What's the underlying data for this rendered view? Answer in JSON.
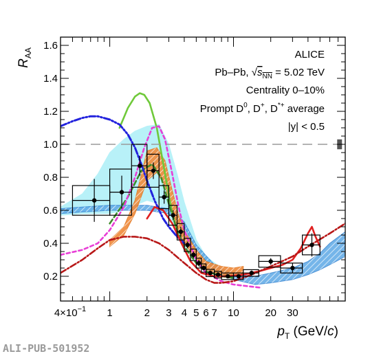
{
  "chart_data": {
    "type": "scatter",
    "title": "ALICE",
    "annotations": {
      "system_prefix": "Pb–Pb, ",
      "energy_sym": "s",
      "energy_sub": "NN",
      "energy_val": " = 5.02 TeV",
      "centrality": "Centrality 0–10%",
      "species_a": "Prompt D",
      "species_sup0": "0",
      "species_b": ", D",
      "species_supplus": "+",
      "species_c": ", D",
      "species_supstar": "*+",
      "species_d": " average",
      "rapidity": "|y| < 0.5"
    },
    "xlabel_main": "p",
    "xlabel_sub": "T",
    "xlabel_unit": " (GeV/",
    "xlabel_c": "c",
    "xlabel_close": ")",
    "ylabel_main": "R",
    "ylabel_sub": "AA",
    "xscale": "log",
    "xlim": [
      0.4,
      80
    ],
    "ylim": [
      0.05,
      1.65
    ],
    "x_tick_labels": [
      {
        "v": 1,
        "t": "1"
      },
      {
        "v": 2,
        "t": "2"
      },
      {
        "v": 3,
        "t": "3"
      },
      {
        "v": 4,
        "t": "4"
      },
      {
        "v": 5,
        "t": "5"
      },
      {
        "v": 6,
        "t": "6"
      },
      {
        "v": 7,
        "t": "7"
      },
      {
        "v": 10,
        "t": "10"
      },
      {
        "v": 20,
        "t": "20"
      },
      {
        "v": 30,
        "t": "30"
      }
    ],
    "x_first_label": {
      "v": 0.4,
      "base": "4×10",
      "exp": "−1"
    },
    "y_ticks": [
      {
        "v": 0.2,
        "t": "0.2"
      },
      {
        "v": 0.4,
        "t": "0.4"
      },
      {
        "v": 0.6,
        "t": "0.6"
      },
      {
        "v": 0.8,
        "t": "0.8"
      },
      {
        "v": 1.0,
        "t": "1.0"
      },
      {
        "v": 1.2,
        "t": "1.2"
      },
      {
        "v": 1.4,
        "t": "1.4"
      },
      {
        "v": 1.6,
        "t": "1.6"
      }
    ],
    "unity_line": 1.0,
    "norm_box": {
      "x": 72,
      "ylo": 0.97,
      "yhi": 1.03
    },
    "data_points": [
      {
        "x": 0.75,
        "y": 0.66,
        "xlo": 0.5,
        "xhi": 1.0,
        "stat": 0.13,
        "syst": 0.09
      },
      {
        "x": 1.25,
        "y": 0.71,
        "xlo": 1.0,
        "xhi": 1.5,
        "stat": 0.1,
        "syst": 0.14
      },
      {
        "x": 1.75,
        "y": 0.87,
        "xlo": 1.5,
        "xhi": 2.0,
        "stat": 0.06,
        "syst": 0.13
      },
      {
        "x": 2.25,
        "y": 0.84,
        "xlo": 2.0,
        "xhi": 2.5,
        "stat": 0.05,
        "syst": 0.1
      },
      {
        "x": 2.75,
        "y": 0.68,
        "xlo": 2.5,
        "xhi": 3.0,
        "stat": 0.04,
        "syst": 0.07
      },
      {
        "x": 3.25,
        "y": 0.57,
        "xlo": 3.0,
        "xhi": 3.5,
        "stat": 0.03,
        "syst": 0.06
      },
      {
        "x": 3.75,
        "y": 0.47,
        "xlo": 3.5,
        "xhi": 4.0,
        "stat": 0.03,
        "syst": 0.05
      },
      {
        "x": 4.25,
        "y": 0.39,
        "xlo": 4.0,
        "xhi": 4.5,
        "stat": 0.02,
        "syst": 0.04
      },
      {
        "x": 4.75,
        "y": 0.33,
        "xlo": 4.5,
        "xhi": 5.0,
        "stat": 0.02,
        "syst": 0.035
      },
      {
        "x": 5.25,
        "y": 0.28,
        "xlo": 5.0,
        "xhi": 5.5,
        "stat": 0.02,
        "syst": 0.03
      },
      {
        "x": 5.75,
        "y": 0.25,
        "xlo": 5.5,
        "xhi": 6.0,
        "stat": 0.015,
        "syst": 0.025
      },
      {
        "x": 6.5,
        "y": 0.22,
        "xlo": 6.0,
        "xhi": 7.0,
        "stat": 0.015,
        "syst": 0.022
      },
      {
        "x": 7.5,
        "y": 0.21,
        "xlo": 7.0,
        "xhi": 8.0,
        "stat": 0.015,
        "syst": 0.02
      },
      {
        "x": 9.0,
        "y": 0.2,
        "xlo": 8.0,
        "xhi": 10.0,
        "stat": 0.012,
        "syst": 0.02
      },
      {
        "x": 11.0,
        "y": 0.2,
        "xlo": 10.0,
        "xhi": 12.0,
        "stat": 0.012,
        "syst": 0.02
      },
      {
        "x": 14.0,
        "y": 0.22,
        "xlo": 12.0,
        "xhi": 16.0,
        "stat": 0.015,
        "syst": 0.02
      },
      {
        "x": 20.0,
        "y": 0.29,
        "xlo": 16.0,
        "xhi": 24.0,
        "stat": 0.02,
        "syst": 0.035
      },
      {
        "x": 30.0,
        "y": 0.25,
        "xlo": 24.0,
        "xhi": 36.0,
        "stat": 0.03,
        "syst": 0.03
      },
      {
        "x": 43.0,
        "y": 0.39,
        "xlo": 36.0,
        "xhi": 50.0,
        "stat": 0.07,
        "syst": 0.06
      }
    ],
    "models": [
      {
        "kind": "band",
        "fill": "#a7eef7",
        "stroke": "#a7eef7",
        "opacity": 0.8,
        "x": [
          0.4,
          0.6,
          0.8,
          1.0,
          1.3,
          1.6,
          2.0,
          2.5,
          3.0,
          3.5,
          4.0,
          5.0,
          6.0,
          8.0,
          10.0
        ],
        "ylo": [
          0.57,
          0.58,
          0.58,
          0.58,
          0.6,
          0.63,
          0.66,
          0.64,
          0.56,
          0.46,
          0.38,
          0.28,
          0.24,
          0.2,
          0.19
        ],
        "yhi": [
          0.62,
          0.7,
          0.82,
          0.95,
          1.03,
          1.08,
          1.11,
          1.12,
          1.0,
          0.82,
          0.65,
          0.42,
          0.32,
          0.25,
          0.22
        ]
      },
      {
        "kind": "band",
        "fill": "#5da9e6",
        "stroke": "#2f7fd0",
        "opacity": 0.85,
        "hatch": true,
        "x": [
          0.4,
          0.6,
          1.0,
          1.5,
          2.0,
          3.0,
          4.0,
          5.0,
          7.0,
          10.0,
          15.0,
          20.0,
          30.0,
          40.0,
          50.0,
          60.0,
          80.0
        ],
        "ylo": [
          0.58,
          0.59,
          0.6,
          0.6,
          0.6,
          0.58,
          0.5,
          0.36,
          0.24,
          0.18,
          0.15,
          0.16,
          0.18,
          0.21,
          0.24,
          0.27,
          0.32
        ],
        "yhi": [
          0.61,
          0.62,
          0.63,
          0.63,
          0.63,
          0.61,
          0.53,
          0.39,
          0.27,
          0.21,
          0.2,
          0.22,
          0.25,
          0.29,
          0.34,
          0.4,
          0.47
        ]
      },
      {
        "kind": "band",
        "fill": "#f08a3a",
        "stroke": "#e2761e",
        "opacity": 0.9,
        "hatch": true,
        "x": [
          1.0,
          1.3,
          1.6,
          2.0,
          2.4,
          2.8,
          3.2,
          3.6,
          4.0,
          5.0,
          6.0,
          8.0,
          10.0,
          12.0
        ],
        "ylo": [
          0.38,
          0.45,
          0.58,
          0.78,
          0.83,
          0.75,
          0.6,
          0.48,
          0.4,
          0.3,
          0.24,
          0.21,
          0.2,
          0.21
        ],
        "yhi": [
          0.42,
          0.5,
          0.66,
          0.96,
          0.98,
          0.9,
          0.72,
          0.57,
          0.48,
          0.36,
          0.29,
          0.26,
          0.25,
          0.26
        ]
      },
      {
        "kind": "line",
        "color": "#6fc93a",
        "width": 2.6,
        "dash": "",
        "x": [
          1.2,
          1.4,
          1.6,
          1.75,
          1.9,
          2.1,
          2.4,
          2.8,
          3.2,
          3.6,
          4.0
        ],
        "y": [
          1.1,
          1.22,
          1.29,
          1.31,
          1.3,
          1.25,
          1.1,
          0.82,
          0.58,
          0.44,
          0.38
        ]
      },
      {
        "kind": "line",
        "color": "#3d8a2a",
        "width": 2.6,
        "dash": "7,4",
        "x": [
          1.0,
          1.4,
          1.8,
          2.2,
          2.6,
          3.0,
          3.5,
          4.0,
          5.0,
          6.0,
          8.0,
          10.0
        ],
        "y": [
          0.52,
          0.68,
          0.84,
          0.88,
          0.8,
          0.64,
          0.48,
          0.38,
          0.28,
          0.23,
          0.2,
          0.19
        ]
      },
      {
        "kind": "line",
        "color": "#e83ed6",
        "width": 2.6,
        "dash": "5,4",
        "x": [
          0.4,
          0.6,
          0.8,
          1.0,
          1.3,
          1.6,
          1.9,
          2.2,
          2.5,
          2.8,
          3.2,
          3.6,
          4.0,
          5.0,
          6.0,
          8.0,
          10.0,
          13.0,
          17.0
        ],
        "y": [
          0.33,
          0.36,
          0.4,
          0.48,
          0.62,
          0.8,
          0.98,
          1.1,
          1.11,
          1.03,
          0.82,
          0.62,
          0.48,
          0.3,
          0.22,
          0.17,
          0.15,
          0.14,
          0.13
        ]
      },
      {
        "kind": "line",
        "color": "#2222dd",
        "width": 3.0,
        "dash": "9,3,2,3,2,3",
        "x": [
          0.4,
          0.5,
          0.6,
          0.7,
          0.8,
          1.0,
          1.2,
          1.4,
          1.6,
          1.8,
          2.0,
          2.3,
          2.7,
          3.0,
          3.5,
          4.0
        ],
        "y": [
          1.11,
          1.14,
          1.16,
          1.17,
          1.17,
          1.15,
          1.12,
          1.06,
          0.98,
          0.88,
          0.78,
          0.66,
          0.55,
          0.5,
          0.44,
          0.4
        ]
      },
      {
        "kind": "line",
        "color": "#e02020",
        "width": 2.6,
        "dash": "",
        "x": [
          2.0,
          2.3,
          2.7,
          3.2,
          3.8,
          4.5,
          5.5,
          7.0,
          9.0,
          12.0,
          16.0,
          20.0,
          25.0,
          30.0,
          35.0,
          40.0,
          43.0,
          46.0,
          50.0
        ],
        "y": [
          0.55,
          0.62,
          0.6,
          0.52,
          0.4,
          0.29,
          0.22,
          0.2,
          0.2,
          0.21,
          0.23,
          0.25,
          0.27,
          0.3,
          0.37,
          0.46,
          0.5,
          0.44,
          0.38
        ]
      },
      {
        "kind": "line",
        "color": "#b81818",
        "width": 2.6,
        "dash": "9,3,2,3",
        "x": [
          0.4,
          0.6,
          0.8,
          1.0,
          1.3,
          1.6,
          2.0,
          2.5,
          3.0,
          4.0,
          5.0,
          6.0,
          7.0,
          8.0,
          10.0,
          14.0,
          20.0,
          30.0,
          40.0,
          60.0,
          80.0
        ],
        "y": [
          0.22,
          0.3,
          0.37,
          0.42,
          0.44,
          0.44,
          0.43,
          0.4,
          0.36,
          0.28,
          0.22,
          0.18,
          0.16,
          0.16,
          0.17,
          0.21,
          0.26,
          0.32,
          0.38,
          0.46,
          0.52
        ]
      }
    ],
    "colors": {
      "unity_line": "#9a9a9a",
      "norm_box": "#555555",
      "data": "#000000"
    }
  },
  "watermark": "ALI-PUB-501952"
}
